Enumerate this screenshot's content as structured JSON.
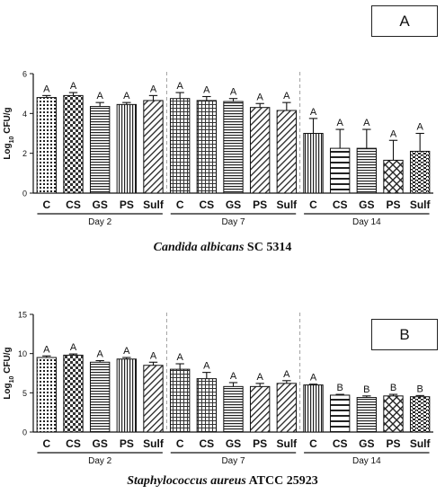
{
  "chart_data": [
    {
      "type": "bar",
      "panel_label": "A",
      "ylabel_base": "Log",
      "ylabel_sub": "10",
      "ylabel_rest": " CFU/g",
      "ylim": [
        0,
        6
      ],
      "yticks": [
        "0",
        "2",
        "4",
        "6"
      ],
      "categories": [
        "C",
        "CS",
        "GS",
        "PS",
        "Sulf",
        "C",
        "CS",
        "GS",
        "PS",
        "Sulf",
        "C",
        "CS",
        "GS",
        "PS",
        "Sulf"
      ],
      "groups": [
        "Day 2",
        "Day 7",
        "Day 14"
      ],
      "values": [
        4.8,
        4.9,
        4.35,
        4.45,
        4.65,
        4.75,
        4.65,
        4.6,
        4.3,
        4.15,
        3.0,
        2.25,
        2.25,
        1.65,
        2.1
      ],
      "errors": [
        0.1,
        0.15,
        0.2,
        0.1,
        0.25,
        0.3,
        0.2,
        0.15,
        0.2,
        0.4,
        0.75,
        0.95,
        0.95,
        1.0,
        0.9
      ],
      "letters": [
        "A",
        "A",
        "A",
        "A",
        "A",
        "A",
        "A",
        "A",
        "A",
        "A",
        "A",
        "A",
        "A",
        "A",
        "A"
      ],
      "caption_organism": "Candida albicans",
      "caption_strain": "SC 5314"
    },
    {
      "type": "bar",
      "panel_label": "B",
      "ylabel_base": "Log",
      "ylabel_sub": "10",
      "ylabel_rest": " CFU/g",
      "ylim": [
        0,
        15
      ],
      "yticks": [
        "0",
        "5",
        "10",
        "15"
      ],
      "categories": [
        "C",
        "CS",
        "GS",
        "PS",
        "Sulf",
        "C",
        "CS",
        "GS",
        "PS",
        "Sulf",
        "C",
        "CS",
        "GS",
        "PS",
        "Sulf"
      ],
      "groups": [
        "Day 2",
        "Day 7",
        "Day 14"
      ],
      "values": [
        9.5,
        9.8,
        8.9,
        9.3,
        8.5,
        8.0,
        6.8,
        5.8,
        5.8,
        6.2,
        6.0,
        4.7,
        4.4,
        4.6,
        4.5
      ],
      "errors": [
        0.2,
        0.15,
        0.2,
        0.2,
        0.4,
        0.7,
        0.8,
        0.5,
        0.4,
        0.35,
        0.1,
        0.1,
        0.2,
        0.2,
        0.15
      ],
      "letters": [
        "A",
        "A",
        "A",
        "A",
        "A",
        "A",
        "A",
        "A",
        "A",
        "A",
        "A",
        "B",
        "B",
        "B",
        "B"
      ],
      "caption_organism": "Staphylococcus aureus",
      "caption_strain": "ATCC 25923"
    }
  ]
}
